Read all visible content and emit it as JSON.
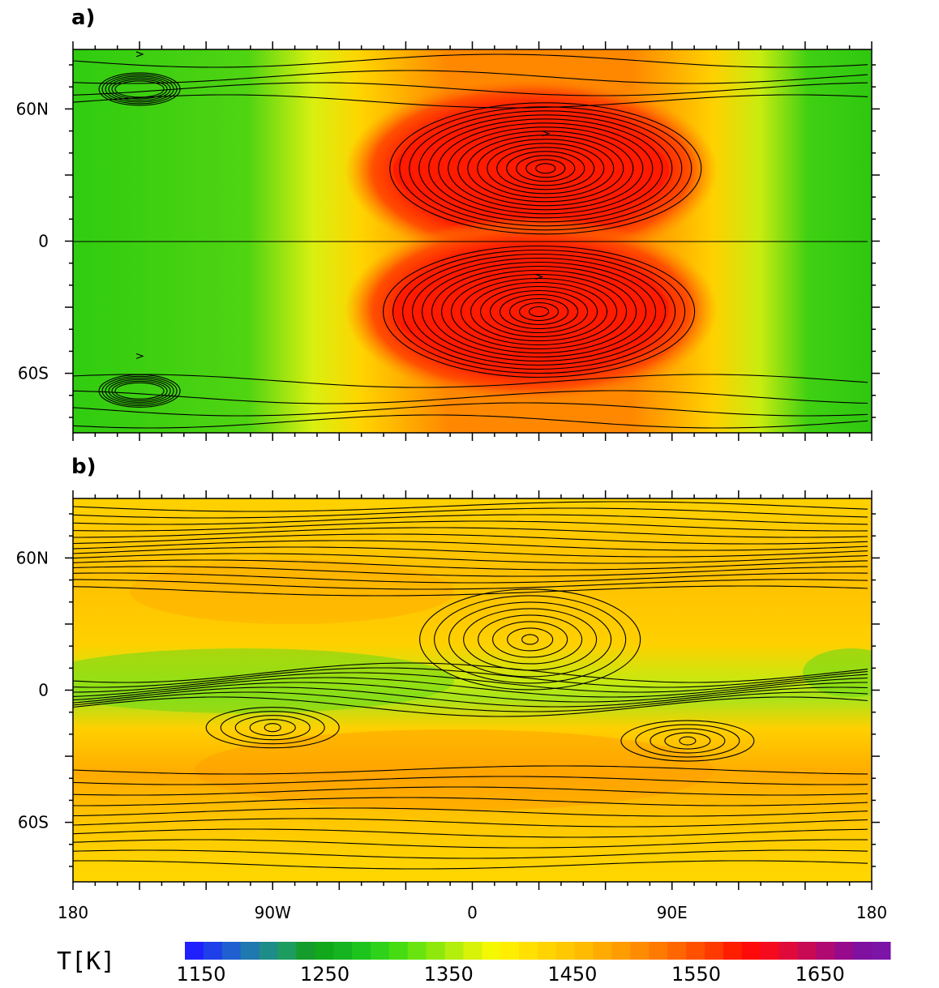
{
  "chart_data": [
    {
      "type": "heatmap",
      "panel_label": "a)",
      "x_ticks": [
        "180",
        "90W",
        "0",
        "90E",
        "180"
      ],
      "y_ticks": [
        "60N",
        "0",
        "60S"
      ],
      "xlim": [
        -180,
        180
      ],
      "ylim": [
        -87,
        87
      ],
      "field": "temperature with streamlines",
      "hot_spots": [
        {
          "lon": 30,
          "lat": 33,
          "T": 1580
        },
        {
          "lon": 30,
          "lat": -33,
          "T": 1580
        }
      ],
      "vortices": [
        {
          "lon": -150,
          "lat": 69
        },
        {
          "lon": -150,
          "lat": -68
        },
        {
          "lon": 33,
          "lat": 33
        },
        {
          "lon": 30,
          "lat": -32
        }
      ]
    },
    {
      "type": "heatmap",
      "panel_label": "b)",
      "x_ticks": [
        "180",
        "90W",
        "0",
        "90E",
        "180"
      ],
      "y_ticks": [
        "60N",
        "0",
        "60S"
      ],
      "xlim": [
        -180,
        180
      ],
      "ylim": [
        -87,
        87
      ],
      "field": "temperature with streamlines",
      "vortices": [
        {
          "lon": 26,
          "lat": 23
        },
        {
          "lon": -90,
          "lat": -17
        },
        {
          "lon": 97,
          "lat": -23
        }
      ]
    }
  ],
  "colorbar": {
    "title": "T[K]",
    "min": 1150,
    "max": 1720,
    "labels": [
      "1150",
      "1250",
      "1350",
      "1450",
      "1550",
      "1650"
    ],
    "colors": [
      "#2020ff",
      "#1f40e8",
      "#1f5fd0",
      "#2078b0",
      "#1e8c88",
      "#1d9c60",
      "#159c2c",
      "#11a81c",
      "#16b420",
      "#1ec41e",
      "#2ed21a",
      "#46dc12",
      "#6ae40e",
      "#8ee80c",
      "#b4ee0c",
      "#d8f208",
      "#f4f800",
      "#ffee00",
      "#ffe000",
      "#ffd400",
      "#ffc800",
      "#ffbb00",
      "#ffab00",
      "#ff9c00",
      "#ff8c00",
      "#ff7a00",
      "#ff6600",
      "#ff5000",
      "#ff3a00",
      "#ff1e00",
      "#ff0a0a",
      "#f50a1e",
      "#e00a3a",
      "#c80a55",
      "#b00a72",
      "#980a8c",
      "#8010a0",
      "#7c14a8"
    ]
  }
}
